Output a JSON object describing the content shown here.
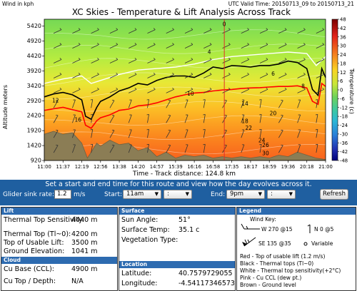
{
  "chart": {
    "title": "XC Skies - Temperature & Lift Analysis Across Track",
    "wind_unit": "Wind in kph",
    "valid_time": "UTC Valid Time: 20150713_09 to 20150713_21",
    "ylabel": "Altitude meters",
    "xlabel": "Time - Track distance: 124.8 km",
    "colorbar_label": "Temperature (c)"
  },
  "chart_data": {
    "type": "heatmap",
    "title": "XC Skies - Temperature & Lift Analysis Across Track",
    "xlabel": "Time - Track distance: 124.8 km",
    "ylabel": "Altitude meters",
    "x_ticks": [
      "11:00",
      "11:37",
      "12:19",
      "12:56",
      "13:38",
      "14:20",
      "14:57",
      "15:39",
      "16:16",
      "16:58",
      "17:35",
      "18:17",
      "18:59",
      "19:36",
      "20:18",
      "21:00"
    ],
    "y_ticks": [
      920,
      1420,
      1920,
      2420,
      2920,
      3420,
      3920,
      4420,
      4920,
      5420
    ],
    "ylim": [
      920,
      5650
    ],
    "colorbar": {
      "label": "Temperature (c)",
      "ticks": [
        48,
        42,
        36,
        30,
        24,
        18,
        12,
        6,
        0,
        -6,
        -12,
        -18,
        -24,
        -30,
        -36,
        -42,
        -48
      ],
      "range": [
        -48,
        48
      ]
    },
    "series": [
      {
        "name": "Red - Top of usable lift (1.2 m/s)",
        "color": "#ff0000",
        "x": [
          0,
          0.5,
          1,
          1.5,
          2,
          2.2,
          2.5,
          2.8,
          3,
          3.5,
          4,
          4.5,
          5,
          5.5,
          6,
          6.5,
          7,
          7.5,
          8,
          8.5,
          9,
          9.5,
          10,
          10.5,
          11,
          11.5,
          12,
          12.5,
          13,
          13.5,
          14,
          14.3,
          14.6,
          14.8,
          15
        ],
        "y": [
          2600,
          2650,
          2700,
          2620,
          2550,
          2100,
          2000,
          2250,
          2350,
          2450,
          2600,
          2640,
          2750,
          2780,
          2850,
          2950,
          3050,
          3120,
          3180,
          3200,
          3250,
          3280,
          3300,
          3330,
          3350,
          3360,
          3380,
          3400,
          3400,
          3420,
          3350,
          2900,
          2800,
          3500,
          3400
        ]
      },
      {
        "name": "Black - Thermal tops (Tl~0)",
        "color": "#000000",
        "x": [
          0,
          0.5,
          1,
          1.5,
          2,
          2.2,
          2.5,
          2.8,
          3,
          3.5,
          4,
          4.5,
          5,
          5.5,
          6,
          6.5,
          7,
          7.5,
          8,
          8.5,
          9,
          9.5,
          10,
          10.5,
          11,
          11.5,
          12,
          12.5,
          13,
          13.5,
          14,
          14.3,
          14.6,
          14.8,
          15
        ],
        "y": [
          3050,
          3150,
          3200,
          3120,
          2950,
          2400,
          2300,
          2700,
          2900,
          3050,
          3250,
          3350,
          3500,
          3450,
          3600,
          3700,
          3750,
          3750,
          3700,
          3850,
          4050,
          4000,
          4100,
          4080,
          4050,
          4100,
          4100,
          4150,
          4250,
          4200,
          4000,
          3300,
          3100,
          4000,
          3700
        ]
      },
      {
        "name": "White - Thermal top sensitivity(+2°C)",
        "color": "#ffffff",
        "x": [
          0,
          1,
          2,
          2.5,
          3,
          4,
          5,
          6,
          7,
          8,
          9,
          10,
          11,
          12,
          13,
          14,
          14.5,
          15
        ],
        "y": [
          3500,
          3650,
          3750,
          3500,
          3600,
          3800,
          3950,
          4000,
          4050,
          4150,
          4300,
          4400,
          4450,
          4500,
          4550,
          4500,
          4100,
          4400
        ]
      },
      {
        "name": "Brown - Ground level",
        "color": "#8b7d55",
        "x": [
          0,
          0.5,
          1,
          1.5,
          2,
          2.3,
          2.5,
          2.8,
          3,
          3.5,
          4,
          4.5,
          5,
          5.5,
          6,
          6.5,
          7,
          7.5,
          8,
          8.5,
          9,
          9.5,
          10,
          10.5,
          11,
          11.5,
          12,
          12.5,
          13,
          13.5,
          14,
          14.5,
          15
        ],
        "y": [
          1800,
          1900,
          1800,
          1850,
          1500,
          1000,
          1200,
          1500,
          1400,
          1600,
          1450,
          1500,
          1250,
          1350,
          1050,
          1200,
          1000,
          1100,
          1050,
          1100,
          1000,
          1050,
          1000,
          1050,
          1000,
          1050,
          1000,
          1100,
          1050,
          1200,
          1100,
          1000,
          950
        ]
      }
    ],
    "isotherm_labels": [
      {
        "value": 12,
        "x": 0.6,
        "y": 2870
      },
      {
        "value": 16,
        "x": 1.8,
        "y": 2220
      },
      {
        "value": 10,
        "x": 7.8,
        "y": 3090
      },
      {
        "value": 14,
        "x": 10.7,
        "y": 2760
      },
      {
        "value": 18,
        "x": 10.7,
        "y": 2170
      },
      {
        "value": 20,
        "x": 12.2,
        "y": 2440
      },
      {
        "value": 22,
        "x": 10.9,
        "y": 1950
      },
      {
        "value": 24,
        "x": 11.6,
        "y": 1530
      },
      {
        "value": 26,
        "x": 11.8,
        "y": 1370
      },
      {
        "value": 30,
        "x": 11.8,
        "y": 1100
      },
      {
        "value": 6,
        "x": 12.2,
        "y": 3760
      },
      {
        "value": 4,
        "x": 8.8,
        "y": 4490
      },
      {
        "value": 0,
        "x": 9.6,
        "y": 5420
      },
      {
        "value": 8,
        "x": 13.8,
        "y": 3340
      }
    ],
    "track_marker_x": 9.6
  },
  "controls": {
    "prompt": "Set a start and end time for this route and view how the day evolves across it.",
    "glider_sink_label": "Glider sink rate:",
    "glider_sink_value": "1.2",
    "glider_sink_unit": "m/s",
    "start_label": "Start:",
    "start_value": "11am",
    "start_min_value": ":",
    "end_label": "End:",
    "end_value": "9pm",
    "end_min_value": ":",
    "refresh_label": "Refresh"
  },
  "lift": {
    "header": "Lift",
    "rows": [
      {
        "label": "Thermal Top Sensitivity:",
        "value": "4440 m"
      },
      {
        "label": "Thermal Top (Tl~0):",
        "value": "4200 m"
      },
      {
        "label": "Top of Usable Lift:",
        "value": "3500 m"
      },
      {
        "label": "Ground Elevation:",
        "value": "1041 m"
      }
    ]
  },
  "cloud": {
    "header": "Cloud",
    "rows": [
      {
        "label": "Cu Base (CCL):",
        "value": "4900 m"
      },
      {
        "label": "Cu Top / Depth:",
        "value": "N/A"
      }
    ]
  },
  "surface": {
    "header": "Surface",
    "rows": [
      {
        "label": "Sun Angle:",
        "value": "51°"
      },
      {
        "label": "Surface Temp:",
        "value": "35.1 c"
      },
      {
        "label": "Vegetation Type:",
        "value": ""
      }
    ]
  },
  "location": {
    "header": "Location",
    "rows": [
      {
        "label": "Latitude:",
        "value": "40.7579729055"
      },
      {
        "label": "Longitude:",
        "value": "-4.54117346573"
      }
    ]
  },
  "legend": {
    "header": "Legend",
    "wind_key": "Wind Key:",
    "w1": "W 270 @15",
    "w2": "N 0 @5",
    "w3": "SE 135 @35",
    "w4": "Variable",
    "lines": [
      "Red - Top of usable lift (1.2 m/s)",
      "Black - Thermal tops (Tl~0)",
      "White - Thermal top sensitivity(+2°C)",
      "Pink - Cu CCL (dew pt.)",
      "Brown - Ground level"
    ]
  }
}
